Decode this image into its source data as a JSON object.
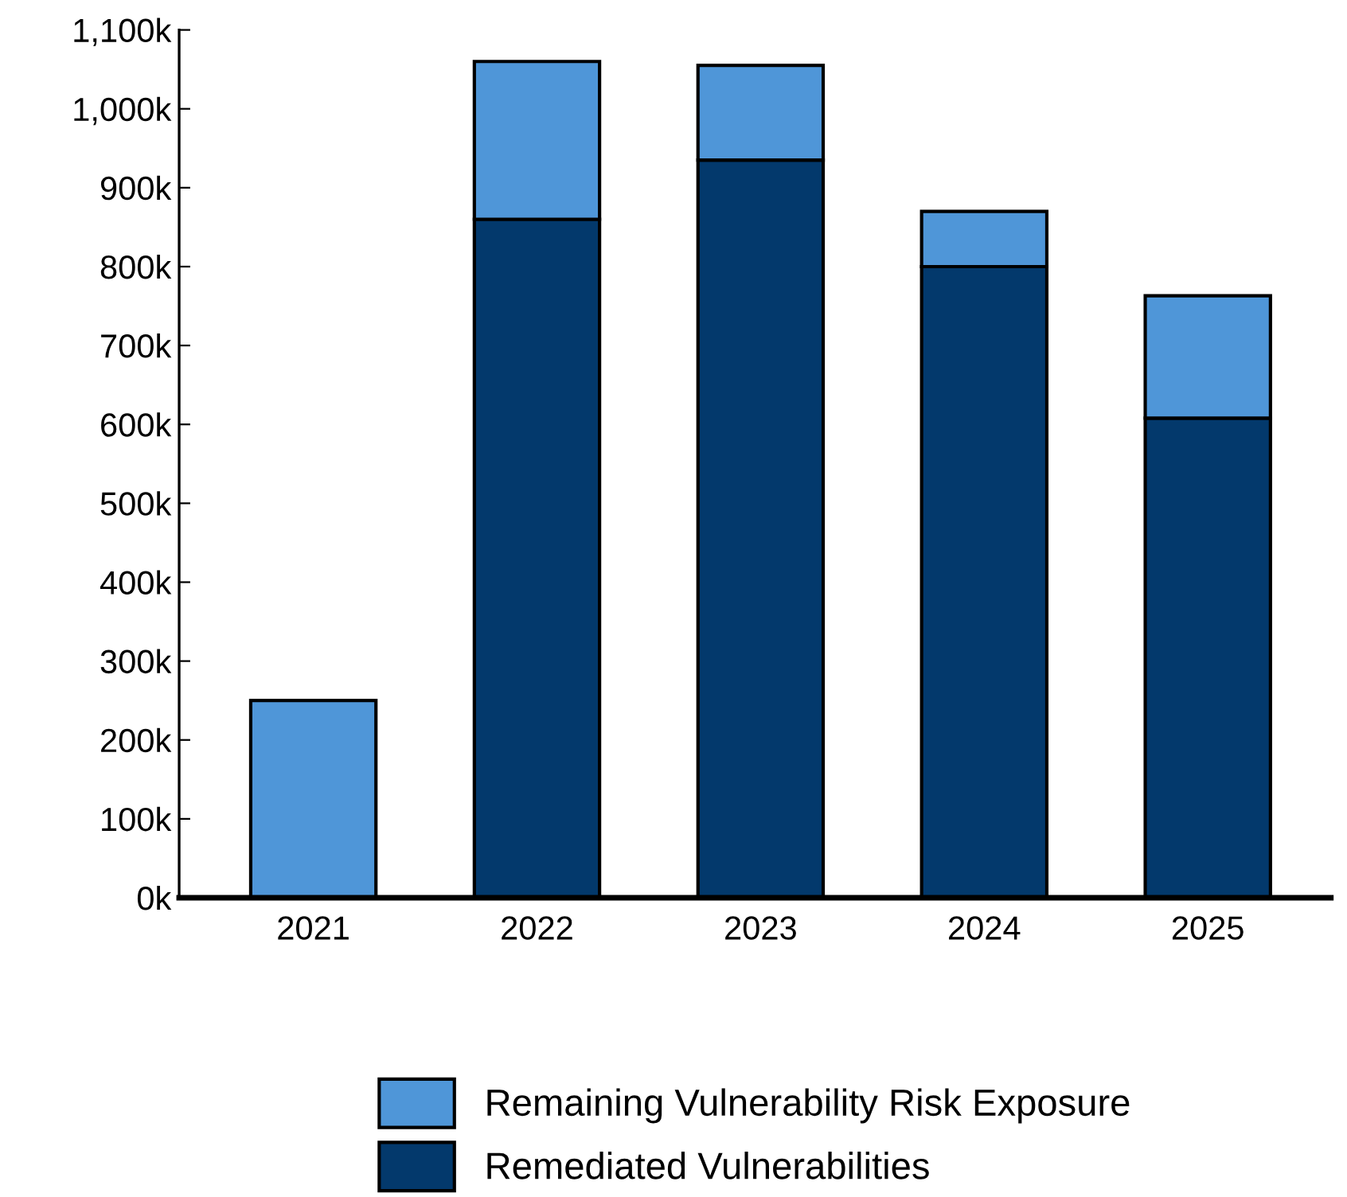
{
  "chart_data": {
    "type": "bar",
    "stacked": true,
    "categories": [
      "2021",
      "2022",
      "2023",
      "2024",
      "2025"
    ],
    "series": [
      {
        "name": "Remediated Vulnerabilities",
        "color": "#03396c",
        "values": [
          0,
          860,
          935,
          800,
          608
        ]
      },
      {
        "name": "Remaining Vulnerability Risk Exposure",
        "color": "#4f96d8",
        "values": [
          250,
          200,
          120,
          70,
          155
        ]
      }
    ],
    "ylim": [
      0,
      1100
    ],
    "yticks": [
      {
        "value": 0,
        "label": "0k"
      },
      {
        "value": 100,
        "label": "100k"
      },
      {
        "value": 200,
        "label": "200k"
      },
      {
        "value": 300,
        "label": "300k"
      },
      {
        "value": 400,
        "label": "400k"
      },
      {
        "value": 500,
        "label": "500k"
      },
      {
        "value": 600,
        "label": "600k"
      },
      {
        "value": 700,
        "label": "700k"
      },
      {
        "value": 800,
        "label": "800k"
      },
      {
        "value": 900,
        "label": "900k"
      },
      {
        "value": 1000,
        "label": "1,000k"
      },
      {
        "value": 1100,
        "label": "1,100k"
      }
    ],
    "grid": false,
    "legend": "bottom"
  }
}
